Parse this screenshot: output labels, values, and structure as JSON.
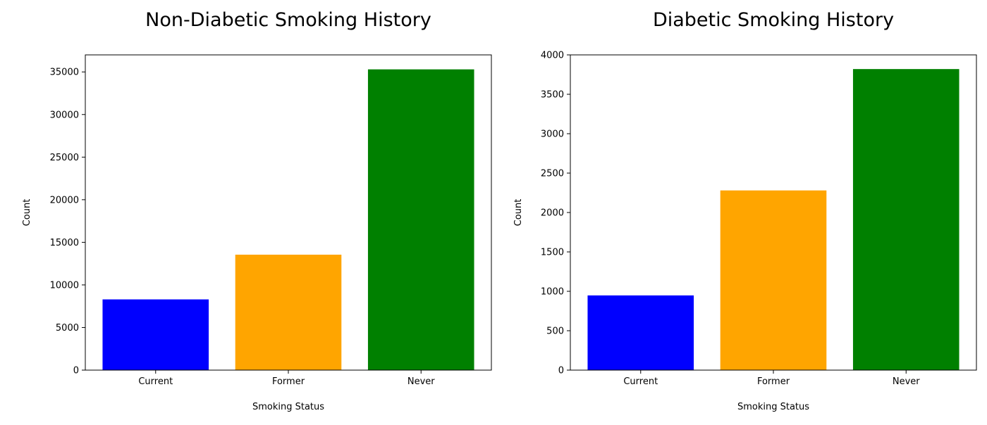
{
  "chart_data": [
    {
      "type": "bar",
      "title": "Non-Diabetic Smoking History",
      "xlabel": "Smoking Status",
      "ylabel": "Count",
      "categories": [
        "Current",
        "Former",
        "Never"
      ],
      "values": [
        8300,
        13550,
        35300
      ],
      "colors": [
        "#0000ff",
        "#ffa500",
        "#008000"
      ],
      "ylim": [
        0,
        37000
      ],
      "yticks": [
        0,
        5000,
        10000,
        15000,
        20000,
        25000,
        30000,
        35000
      ],
      "ytick_labels": [
        "0",
        "5000",
        "10000",
        "15000",
        "20000",
        "25000",
        "30000",
        "35000"
      ],
      "grid": false,
      "legend": false
    },
    {
      "type": "bar",
      "title": "Diabetic Smoking History",
      "xlabel": "Smoking Status",
      "ylabel": "Count",
      "categories": [
        "Current",
        "Former",
        "Never"
      ],
      "values": [
        948,
        2280,
        3820
      ],
      "colors": [
        "#0000ff",
        "#ffa500",
        "#008000"
      ],
      "ylim": [
        0,
        4000
      ],
      "yticks": [
        0,
        500,
        1000,
        1500,
        2000,
        2500,
        3000,
        3500,
        4000
      ],
      "ytick_labels": [
        "0",
        "500",
        "1000",
        "1500",
        "2000",
        "2500",
        "3000",
        "3500",
        "4000"
      ],
      "grid": false,
      "legend": false
    }
  ]
}
